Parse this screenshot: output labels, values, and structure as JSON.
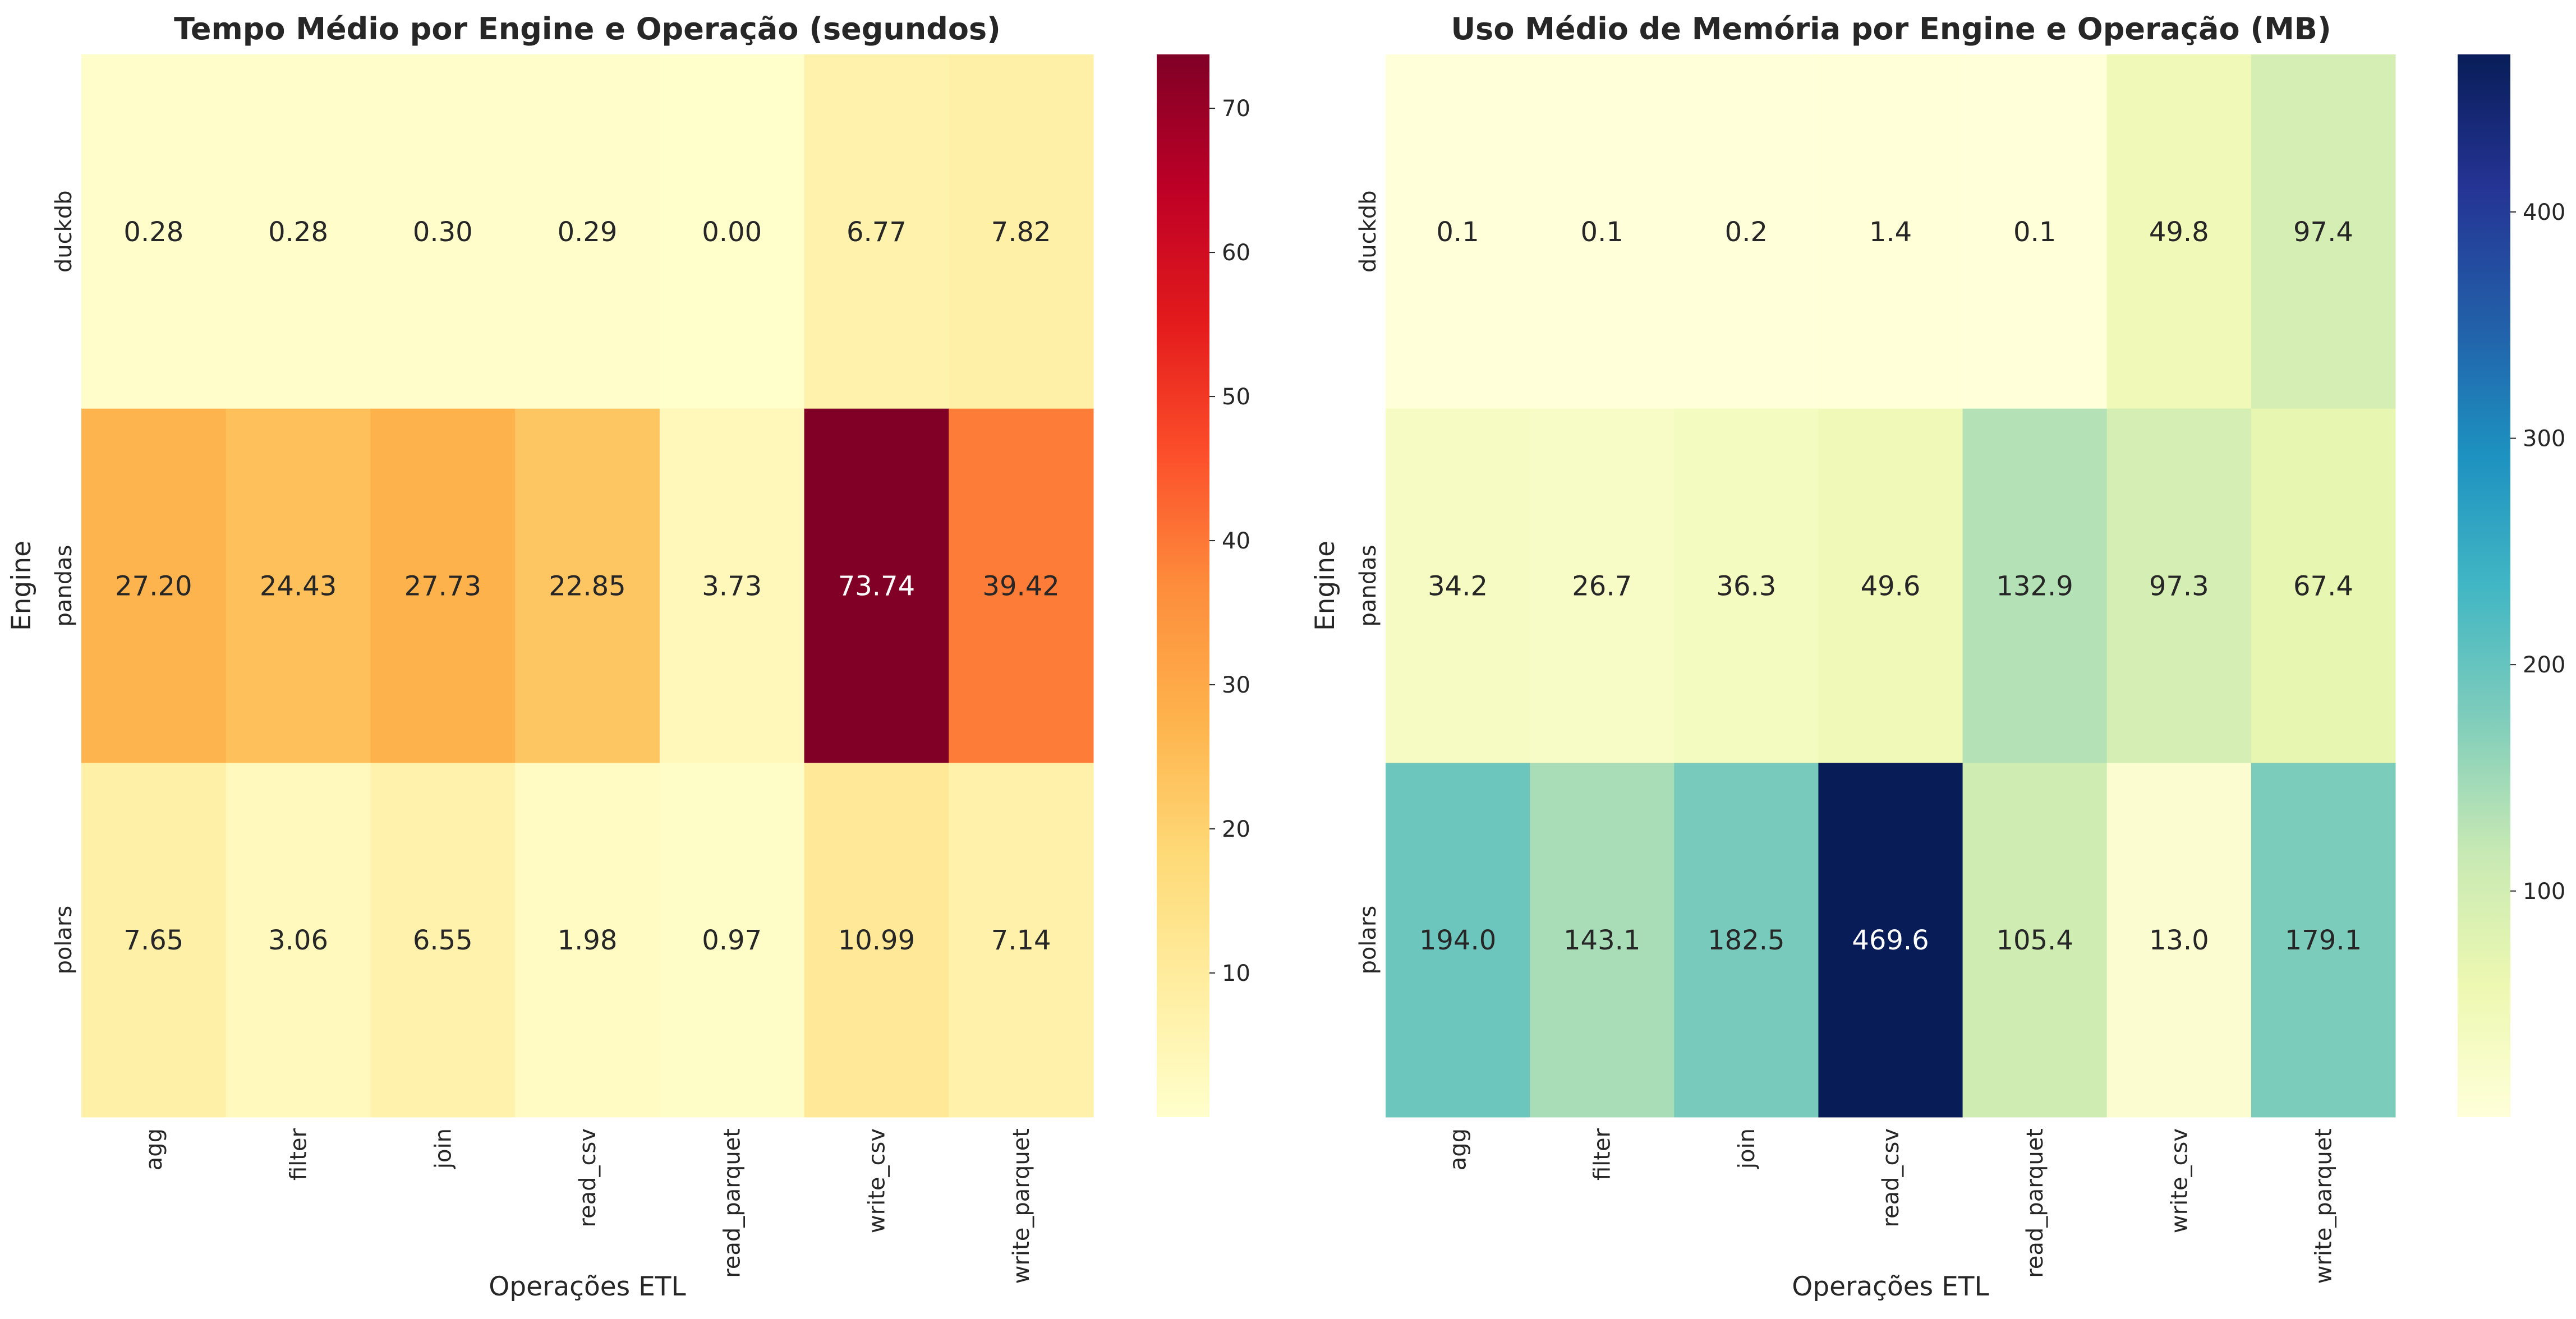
{
  "chart_data": [
    {
      "type": "heatmap",
      "title": "Tempo Médio por Engine e Operação (segundos)",
      "xlabel": "Operações ETL",
      "ylabel": "Engine",
      "x_categories": [
        "agg",
        "filter",
        "join",
        "read_csv",
        "read_parquet",
        "write_csv",
        "write_parquet"
      ],
      "y_categories": [
        "duckdb",
        "pandas",
        "polars"
      ],
      "values": [
        [
          0.28,
          0.28,
          0.3,
          0.29,
          0.0,
          6.77,
          7.82
        ],
        [
          27.2,
          24.43,
          27.73,
          22.85,
          3.73,
          73.74,
          39.42
        ],
        [
          7.65,
          3.06,
          6.55,
          1.98,
          0.97,
          10.99,
          7.14
        ]
      ],
      "value_decimals": 2,
      "colormap": "YlOrRd",
      "colormap_stops": [
        "#ffffcc",
        "#ffeda0",
        "#fed976",
        "#feb24c",
        "#fd8d3c",
        "#fc4e2a",
        "#e31a1c",
        "#bd0026",
        "#800026"
      ],
      "vmin": 0.0,
      "vmax": 73.74,
      "colorbar_ticks": [
        10,
        20,
        30,
        40,
        50,
        60,
        70
      ],
      "text_color_dark": "#262626",
      "text_color_light": "#ffffff"
    },
    {
      "type": "heatmap",
      "title": "Uso Médio de Memória por Engine e Operação (MB)",
      "xlabel": "Operações ETL",
      "ylabel": "Engine",
      "x_categories": [
        "agg",
        "filter",
        "join",
        "read_csv",
        "read_parquet",
        "write_csv",
        "write_parquet"
      ],
      "y_categories": [
        "duckdb",
        "pandas",
        "polars"
      ],
      "values": [
        [
          0.1,
          0.1,
          0.2,
          1.4,
          0.1,
          49.8,
          97.4
        ],
        [
          34.2,
          26.7,
          36.3,
          49.6,
          132.9,
          97.3,
          67.4
        ],
        [
          194.0,
          143.1,
          182.5,
          469.6,
          105.4,
          13.0,
          179.1
        ]
      ],
      "value_decimals": 1,
      "colormap": "YlGnBu",
      "colormap_stops": [
        "#ffffd9",
        "#edf8b1",
        "#c7e9b4",
        "#7fcdbb",
        "#41b6c4",
        "#1d91c0",
        "#225ea8",
        "#253494",
        "#081d58"
      ],
      "vmin": 0.1,
      "vmax": 469.6,
      "colorbar_ticks": [
        100,
        200,
        300,
        400
      ],
      "text_color_dark": "#262626",
      "text_color_light": "#ffffff"
    }
  ]
}
